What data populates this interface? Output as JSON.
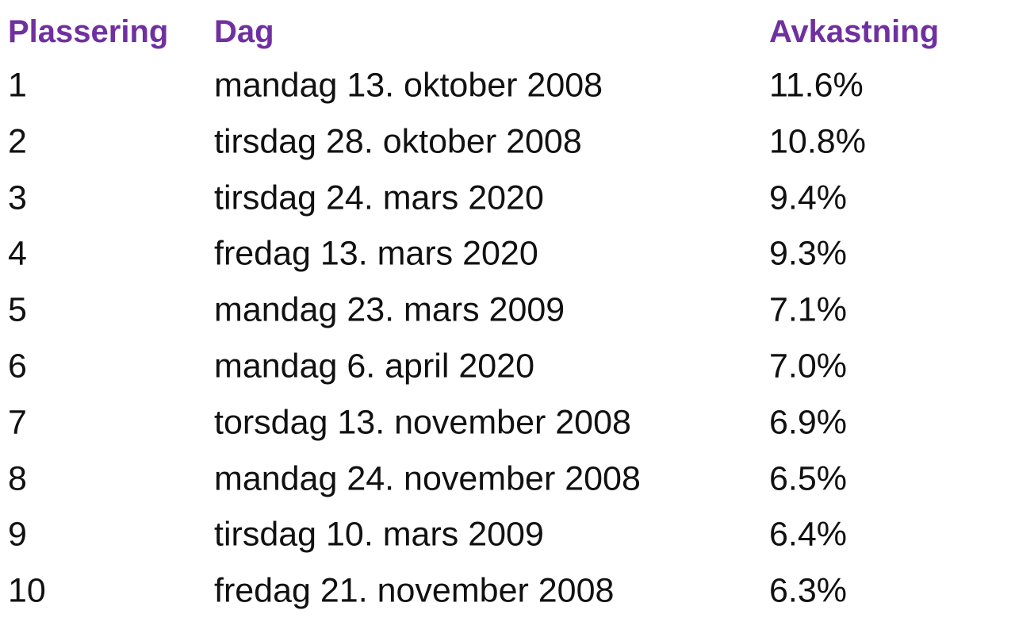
{
  "table": {
    "header": [
      "Plassering",
      "Dag",
      "Avkastning"
    ],
    "rows": [
      [
        "1",
        "mandag 13. oktober 2008",
        "11.6%"
      ],
      [
        "2",
        "tirsdag 28. oktober 2008",
        "10.8%"
      ],
      [
        "3",
        "tirsdag 24. mars 2020",
        "9.4%"
      ],
      [
        "4",
        "fredag 13. mars 2020",
        "9.3%"
      ],
      [
        "5",
        "mandag 23. mars 2009",
        "7.1%"
      ],
      [
        "6",
        "mandag 6. april 2020",
        "7.0%"
      ],
      [
        "7",
        "torsdag 13. november 2008",
        "6.9%"
      ],
      [
        "8",
        "mandag 24. november 2008",
        "6.5%"
      ],
      [
        "9",
        "tirsdag 10. mars 2009",
        "6.4%"
      ],
      [
        "10",
        "fredag 21. november 2008",
        "6.3%"
      ]
    ]
  }
}
